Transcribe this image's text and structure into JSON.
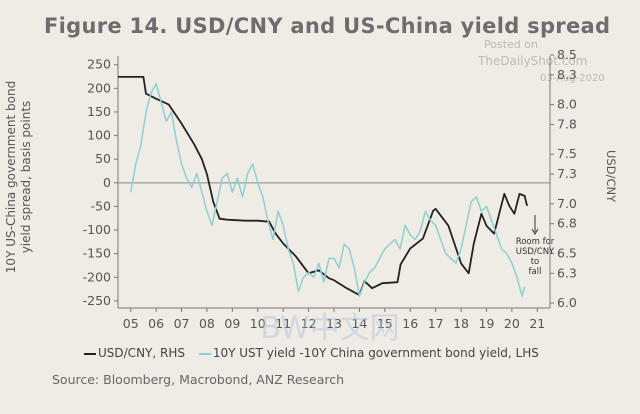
{
  "title": "Figure 14. USD/CNY and US-China yield spread",
  "watermark": {
    "line1": "Posted on",
    "line2": "TheDailyShot.com",
    "line3": "03-Aug-2020"
  },
  "bottom_watermark": "BW中文网",
  "source": "Source: Bloomberg, Macrobond, ANZ Research",
  "colors": {
    "usdcny": "#222222",
    "spread": "#8fcfd1",
    "zero_line": "#888888",
    "background": "#efece5"
  },
  "chart_data": {
    "type": "line",
    "title": "Figure 14. USD/CNY and US-China yield spread",
    "y_left_label": "10Y US-China government bond yield spread, basis points",
    "y_right_label": "USD/CNY",
    "y_left_range": [
      -265,
      260
    ],
    "y_right_range": [
      5.95,
      8.45
    ],
    "y_left_ticks": [
      "250",
      "200",
      "150",
      "100",
      "50",
      "0",
      "-50",
      "-100",
      "-150",
      "-200",
      "-250"
    ],
    "y_right_ticks": [
      "8.5",
      "8.3",
      "8.0",
      "7.8",
      "7.5",
      "7.3",
      "7.0",
      "6.8",
      "6.5",
      "6.3",
      "6.0"
    ],
    "x_ticks": [
      "05",
      "06",
      "07",
      "08",
      "09",
      "10",
      "11",
      "12",
      "13",
      "14",
      "15",
      "16",
      "17",
      "18",
      "19",
      "20",
      "21"
    ],
    "x_range": [
      2004.5,
      2021.5
    ],
    "grid": false,
    "legend_position": "bottom",
    "annotation": [
      "Room for",
      "USD/CNY",
      "to",
      "fall"
    ],
    "series": [
      {
        "name": "USD/CNY, RHS",
        "axis": "right",
        "points": [
          [
            2004.5,
            8.28
          ],
          [
            2005.5,
            8.28
          ],
          [
            2005.6,
            8.11
          ],
          [
            2006.0,
            8.06
          ],
          [
            2006.5,
            8.0
          ],
          [
            2007.0,
            7.81
          ],
          [
            2007.5,
            7.6
          ],
          [
            2007.8,
            7.45
          ],
          [
            2008.0,
            7.3
          ],
          [
            2008.25,
            7.02
          ],
          [
            2008.5,
            6.85
          ],
          [
            2008.8,
            6.84
          ],
          [
            2009.5,
            6.83
          ],
          [
            2010.0,
            6.83
          ],
          [
            2010.45,
            6.82
          ],
          [
            2010.7,
            6.7
          ],
          [
            2011.0,
            6.6
          ],
          [
            2011.5,
            6.47
          ],
          [
            2012.0,
            6.3
          ],
          [
            2012.4,
            6.33
          ],
          [
            2012.8,
            6.25
          ],
          [
            2013.0,
            6.23
          ],
          [
            2013.5,
            6.15
          ],
          [
            2014.0,
            6.08
          ],
          [
            2014.2,
            6.22
          ],
          [
            2014.5,
            6.15
          ],
          [
            2014.9,
            6.2
          ],
          [
            2015.5,
            6.21
          ],
          [
            2015.62,
            6.39
          ],
          [
            2016.0,
            6.55
          ],
          [
            2016.5,
            6.65
          ],
          [
            2016.9,
            6.93
          ],
          [
            2017.0,
            6.95
          ],
          [
            2017.5,
            6.78
          ],
          [
            2018.0,
            6.4
          ],
          [
            2018.3,
            6.3
          ],
          [
            2018.5,
            6.6
          ],
          [
            2018.8,
            6.9
          ],
          [
            2019.0,
            6.78
          ],
          [
            2019.3,
            6.7
          ],
          [
            2019.5,
            6.9
          ],
          [
            2019.7,
            7.1
          ],
          [
            2019.9,
            6.98
          ],
          [
            2020.1,
            6.9
          ],
          [
            2020.3,
            7.1
          ],
          [
            2020.5,
            7.08
          ],
          [
            2020.6,
            6.98
          ]
        ]
      },
      {
        "name": "10Y UST yield -10Y China government bond yield, LHS",
        "axis": "left",
        "points": [
          [
            2005.0,
            -20
          ],
          [
            2005.2,
            40
          ],
          [
            2005.4,
            80
          ],
          [
            2005.6,
            150
          ],
          [
            2005.8,
            190
          ],
          [
            2006.0,
            210
          ],
          [
            2006.2,
            170
          ],
          [
            2006.4,
            130
          ],
          [
            2006.6,
            150
          ],
          [
            2006.8,
            90
          ],
          [
            2007.0,
            40
          ],
          [
            2007.2,
            10
          ],
          [
            2007.4,
            -10
          ],
          [
            2007.6,
            20
          ],
          [
            2007.8,
            -20
          ],
          [
            2008.0,
            -60
          ],
          [
            2008.2,
            -90
          ],
          [
            2008.4,
            -40
          ],
          [
            2008.6,
            10
          ],
          [
            2008.8,
            20
          ],
          [
            2009.0,
            -20
          ],
          [
            2009.2,
            10
          ],
          [
            2009.4,
            -30
          ],
          [
            2009.6,
            20
          ],
          [
            2009.8,
            40
          ],
          [
            2010.0,
            0
          ],
          [
            2010.2,
            -30
          ],
          [
            2010.4,
            -80
          ],
          [
            2010.6,
            -120
          ],
          [
            2010.8,
            -60
          ],
          [
            2011.0,
            -90
          ],
          [
            2011.2,
            -140
          ],
          [
            2011.4,
            -170
          ],
          [
            2011.6,
            -230
          ],
          [
            2011.8,
            -200
          ],
          [
            2012.0,
            -190
          ],
          [
            2012.2,
            -200
          ],
          [
            2012.4,
            -170
          ],
          [
            2012.6,
            -210
          ],
          [
            2012.8,
            -160
          ],
          [
            2013.0,
            -160
          ],
          [
            2013.2,
            -180
          ],
          [
            2013.4,
            -130
          ],
          [
            2013.6,
            -140
          ],
          [
            2013.8,
            -180
          ],
          [
            2014.0,
            -240
          ],
          [
            2014.2,
            -210
          ],
          [
            2014.4,
            -190
          ],
          [
            2014.6,
            -180
          ],
          [
            2014.8,
            -160
          ],
          [
            2015.0,
            -140
          ],
          [
            2015.2,
            -130
          ],
          [
            2015.4,
            -120
          ],
          [
            2015.6,
            -140
          ],
          [
            2015.8,
            -90
          ],
          [
            2016.0,
            -110
          ],
          [
            2016.2,
            -120
          ],
          [
            2016.4,
            -100
          ],
          [
            2016.6,
            -60
          ],
          [
            2016.8,
            -80
          ],
          [
            2017.0,
            -90
          ],
          [
            2017.2,
            -120
          ],
          [
            2017.4,
            -150
          ],
          [
            2017.6,
            -160
          ],
          [
            2017.8,
            -170
          ],
          [
            2018.0,
            -140
          ],
          [
            2018.2,
            -90
          ],
          [
            2018.4,
            -40
          ],
          [
            2018.6,
            -30
          ],
          [
            2018.8,
            -60
          ],
          [
            2019.0,
            -50
          ],
          [
            2019.2,
            -80
          ],
          [
            2019.4,
            -110
          ],
          [
            2019.6,
            -140
          ],
          [
            2019.8,
            -150
          ],
          [
            2020.0,
            -170
          ],
          [
            2020.2,
            -200
          ],
          [
            2020.4,
            -240
          ],
          [
            2020.5,
            -220
          ]
        ]
      }
    ]
  }
}
